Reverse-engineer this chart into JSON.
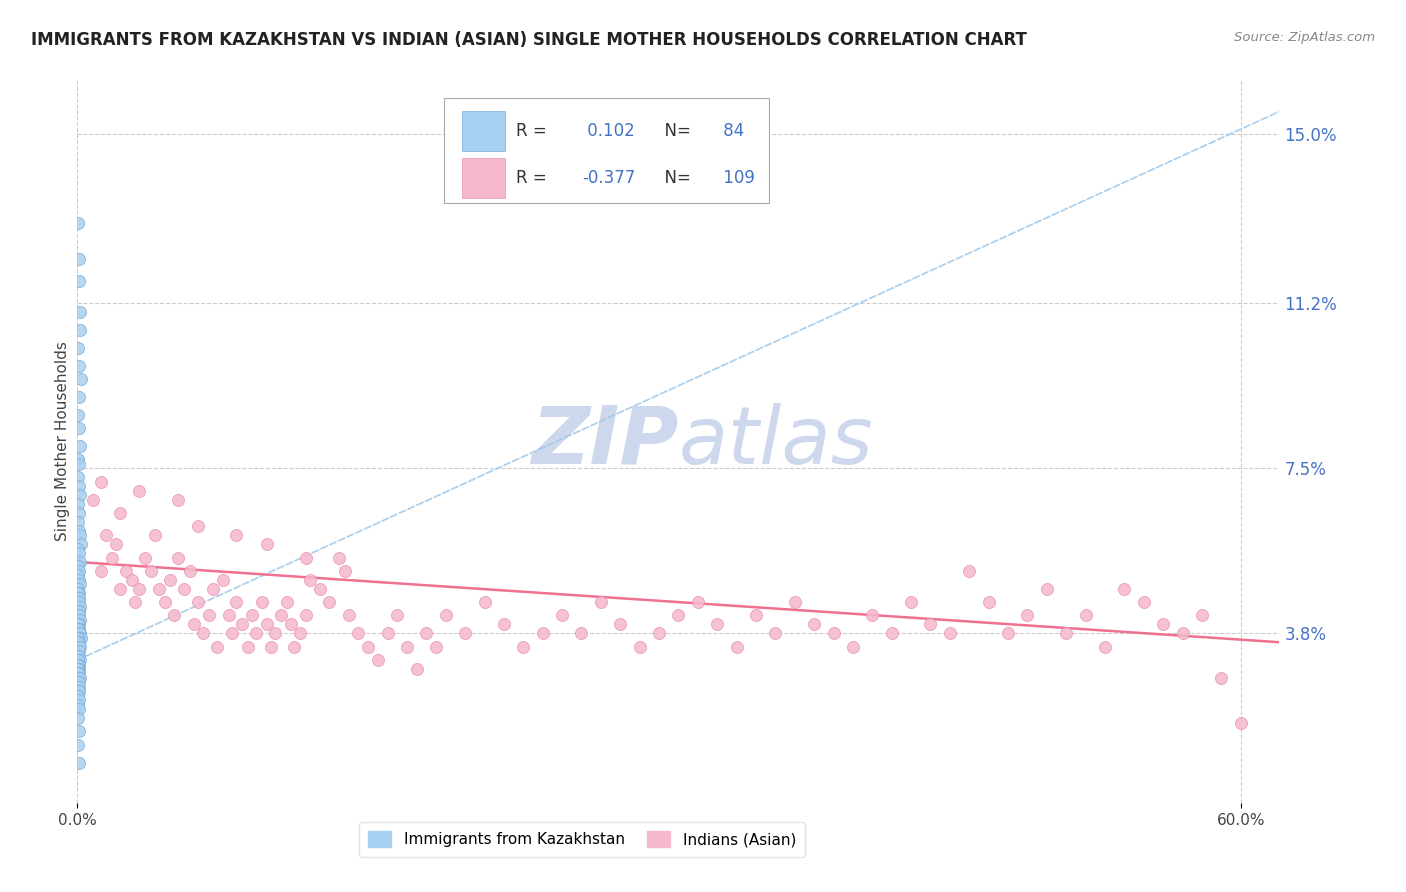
{
  "title": "IMMIGRANTS FROM KAZAKHSTAN VS INDIAN (ASIAN) SINGLE MOTHER HOUSEHOLDS CORRELATION CHART",
  "source": "Source: ZipAtlas.com",
  "ylabel": "Single Mother Households",
  "ytick_labels": [
    "15.0%",
    "11.2%",
    "7.5%",
    "3.8%"
  ],
  "ytick_values": [
    0.15,
    0.112,
    0.075,
    0.038
  ],
  "ylim": [
    0.0,
    0.162
  ],
  "xlim": [
    0.0,
    0.62
  ],
  "legend1_label": "Immigrants from Kazakhstan",
  "legend2_label": "Indians (Asian)",
  "R1": 0.102,
  "N1": 84,
  "R2": -0.377,
  "N2": 109,
  "color_blue": "#A8D0F0",
  "color_pink": "#F5B8CC",
  "color_blue_edge": "#7AAAD8",
  "color_pink_edge": "#E890B0",
  "color_pink_line": "#F07090",
  "color_blue_line": "#A0C8E8",
  "watermark_color": "#CDD8EC",
  "background": "#FFFFFF",
  "kaz_x": [
    0.0005,
    0.0008,
    0.001,
    0.0012,
    0.0015,
    0.0005,
    0.001,
    0.002,
    0.0008,
    0.0005,
    0.001,
    0.0015,
    0.0005,
    0.001,
    0.0005,
    0.001,
    0.0015,
    0.0005,
    0.001,
    0.0005,
    0.001,
    0.0015,
    0.002,
    0.0005,
    0.001,
    0.0015,
    0.0005,
    0.001,
    0.0005,
    0.001,
    0.0015,
    0.0005,
    0.001,
    0.0005,
    0.001,
    0.0005,
    0.001,
    0.0015,
    0.0005,
    0.001,
    0.0005,
    0.001,
    0.0005,
    0.0015,
    0.001,
    0.0005,
    0.001,
    0.0005,
    0.001,
    0.0015,
    0.002,
    0.0005,
    0.001,
    0.0005,
    0.001,
    0.0015,
    0.0005,
    0.001,
    0.0005,
    0.001,
    0.0015,
    0.0005,
    0.001,
    0.0005,
    0.001,
    0.0005,
    0.001,
    0.0005,
    0.001,
    0.0015,
    0.0005,
    0.001,
    0.0005,
    0.001,
    0.0005,
    0.001,
    0.0005,
    0.001,
    0.0005,
    0.001,
    0.0005,
    0.001,
    0.0005,
    0.001
  ],
  "kaz_y": [
    0.13,
    0.122,
    0.117,
    0.11,
    0.106,
    0.102,
    0.098,
    0.095,
    0.091,
    0.087,
    0.084,
    0.08,
    0.077,
    0.076,
    0.073,
    0.071,
    0.069,
    0.067,
    0.065,
    0.063,
    0.061,
    0.06,
    0.058,
    0.057,
    0.056,
    0.054,
    0.053,
    0.052,
    0.051,
    0.05,
    0.049,
    0.048,
    0.047,
    0.047,
    0.046,
    0.045,
    0.045,
    0.044,
    0.043,
    0.043,
    0.042,
    0.042,
    0.041,
    0.041,
    0.04,
    0.04,
    0.039,
    0.039,
    0.038,
    0.038,
    0.037,
    0.037,
    0.036,
    0.036,
    0.035,
    0.035,
    0.034,
    0.034,
    0.033,
    0.033,
    0.032,
    0.032,
    0.031,
    0.031,
    0.03,
    0.03,
    0.029,
    0.029,
    0.028,
    0.028,
    0.027,
    0.027,
    0.026,
    0.026,
    0.025,
    0.025,
    0.024,
    0.023,
    0.022,
    0.021,
    0.019,
    0.016,
    0.013,
    0.009
  ],
  "india_x": [
    0.008,
    0.012,
    0.015,
    0.018,
    0.02,
    0.022,
    0.025,
    0.028,
    0.03,
    0.032,
    0.035,
    0.038,
    0.04,
    0.042,
    0.045,
    0.048,
    0.05,
    0.052,
    0.055,
    0.058,
    0.06,
    0.062,
    0.065,
    0.068,
    0.07,
    0.072,
    0.075,
    0.078,
    0.08,
    0.082,
    0.085,
    0.088,
    0.09,
    0.092,
    0.095,
    0.098,
    0.1,
    0.102,
    0.105,
    0.108,
    0.11,
    0.112,
    0.115,
    0.118,
    0.12,
    0.125,
    0.13,
    0.135,
    0.14,
    0.145,
    0.15,
    0.155,
    0.16,
    0.165,
    0.17,
    0.175,
    0.18,
    0.185,
    0.19,
    0.2,
    0.21,
    0.22,
    0.23,
    0.24,
    0.25,
    0.26,
    0.27,
    0.28,
    0.29,
    0.3,
    0.31,
    0.32,
    0.33,
    0.34,
    0.35,
    0.36,
    0.37,
    0.38,
    0.39,
    0.4,
    0.41,
    0.42,
    0.43,
    0.44,
    0.45,
    0.46,
    0.47,
    0.48,
    0.49,
    0.5,
    0.51,
    0.52,
    0.53,
    0.54,
    0.55,
    0.56,
    0.57,
    0.58,
    0.59,
    0.6,
    0.012,
    0.022,
    0.032,
    0.052,
    0.062,
    0.082,
    0.098,
    0.118,
    0.138
  ],
  "india_y": [
    0.068,
    0.052,
    0.06,
    0.055,
    0.058,
    0.048,
    0.052,
    0.05,
    0.045,
    0.048,
    0.055,
    0.052,
    0.06,
    0.048,
    0.045,
    0.05,
    0.042,
    0.055,
    0.048,
    0.052,
    0.04,
    0.045,
    0.038,
    0.042,
    0.048,
    0.035,
    0.05,
    0.042,
    0.038,
    0.045,
    0.04,
    0.035,
    0.042,
    0.038,
    0.045,
    0.04,
    0.035,
    0.038,
    0.042,
    0.045,
    0.04,
    0.035,
    0.038,
    0.042,
    0.05,
    0.048,
    0.045,
    0.055,
    0.042,
    0.038,
    0.035,
    0.032,
    0.038,
    0.042,
    0.035,
    0.03,
    0.038,
    0.035,
    0.042,
    0.038,
    0.045,
    0.04,
    0.035,
    0.038,
    0.042,
    0.038,
    0.045,
    0.04,
    0.035,
    0.038,
    0.042,
    0.045,
    0.04,
    0.035,
    0.042,
    0.038,
    0.045,
    0.04,
    0.038,
    0.035,
    0.042,
    0.038,
    0.045,
    0.04,
    0.038,
    0.052,
    0.045,
    0.038,
    0.042,
    0.048,
    0.038,
    0.042,
    0.035,
    0.048,
    0.045,
    0.04,
    0.038,
    0.042,
    0.028,
    0.018,
    0.072,
    0.065,
    0.07,
    0.068,
    0.062,
    0.06,
    0.058,
    0.055,
    0.052
  ],
  "kaz_trend_x": [
    0.0,
    0.62
  ],
  "kaz_trend_y": [
    0.032,
    0.155
  ],
  "india_trend_x": [
    0.0,
    0.62
  ],
  "india_trend_y": [
    0.054,
    0.036
  ]
}
